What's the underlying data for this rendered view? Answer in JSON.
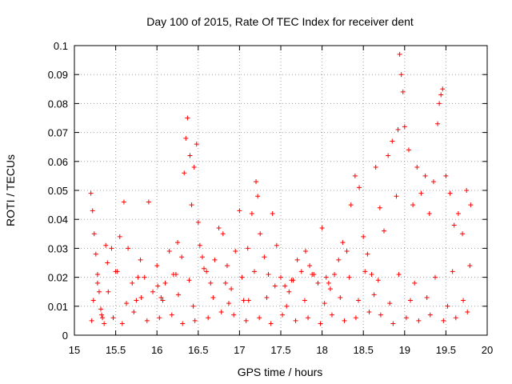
{
  "chart_data": {
    "type": "scatter",
    "title": "Day 100 of 2015, Rate Of TEC Index for receiver dent",
    "xlabel": "GPS time / hours",
    "ylabel": "ROTI / TECUs",
    "xlim": [
      15,
      20
    ],
    "ylim": [
      0,
      0.1
    ],
    "xticks": [
      "15",
      "15.5",
      "16",
      "16.5",
      "17",
      "17.5",
      "18",
      "18.5",
      "19",
      "19.5",
      "20"
    ],
    "yticks": [
      "0",
      "0.01",
      "0.02",
      "0.03",
      "0.04",
      "0.05",
      "0.06",
      "0.07",
      "0.08",
      "0.09",
      "0.1"
    ],
    "grid": true,
    "legend": "none",
    "marker": "plus",
    "color": "#ff0000",
    "series": [
      {
        "x": [
          15.2,
          15.22,
          15.24,
          15.26,
          15.28,
          15.3,
          15.32,
          15.34,
          15.36,
          15.38,
          15.4,
          15.45,
          15.5,
          15.55,
          15.6,
          15.65,
          15.7,
          15.75,
          15.8,
          15.85,
          15.9,
          15.95,
          16.0,
          16.05,
          16.1,
          16.15,
          16.2,
          16.25,
          16.3,
          16.33,
          16.35,
          16.37,
          16.4,
          16.42,
          16.45,
          16.48,
          16.5,
          16.52,
          16.55,
          16.6,
          16.65,
          16.7,
          16.75,
          16.8,
          16.85,
          16.9,
          16.95,
          17.0,
          17.05,
          17.1,
          17.15,
          17.2,
          17.22,
          17.25,
          17.3,
          17.35,
          17.4,
          17.45,
          17.5,
          17.55,
          17.6,
          17.65,
          17.7,
          17.75,
          17.8,
          17.85,
          17.9,
          17.95,
          18.0,
          18.05,
          18.1,
          18.15,
          18.2,
          18.25,
          18.3,
          18.35,
          18.4,
          18.45,
          18.5,
          18.55,
          18.6,
          18.65,
          18.7,
          18.75,
          18.8,
          18.85,
          18.9,
          18.92,
          18.94,
          18.96,
          18.98,
          19.0,
          19.05,
          19.1,
          19.15,
          19.2,
          19.25,
          19.3,
          19.35,
          19.4,
          19.42,
          19.44,
          19.46,
          19.5,
          19.55,
          19.6,
          19.65,
          19.7,
          19.75,
          19.8,
          15.21,
          15.33,
          15.47,
          15.58,
          15.72,
          15.88,
          16.03,
          16.18,
          16.31,
          16.46,
          16.62,
          16.78,
          16.93,
          17.08,
          17.24,
          17.38,
          17.52,
          17.68,
          17.83,
          17.98,
          18.12,
          18.27,
          18.41,
          18.57,
          18.71,
          18.86,
          19.02,
          19.17,
          19.31,
          19.47,
          19.62,
          19.76,
          15.23,
          15.41,
          15.63,
          15.81,
          16.07,
          16.26,
          16.44,
          16.68,
          16.87,
          17.11,
          17.33,
          17.57,
          17.79,
          18.03,
          18.22,
          18.44,
          18.63,
          18.82,
          19.07,
          19.27,
          19.52,
          19.71,
          15.28,
          15.52,
          15.77,
          16.01,
          16.23,
          16.39,
          16.57,
          16.83,
          17.03,
          17.18,
          17.43,
          17.63,
          17.88,
          18.08,
          18.33,
          18.52,
          18.68,
          18.93,
          19.12,
          19.37,
          19.58,
          19.79
        ],
        "y": [
          0.049,
          0.043,
          0.035,
          0.028,
          0.021,
          0.015,
          0.009,
          0.006,
          0.004,
          0.031,
          0.025,
          0.03,
          0.022,
          0.034,
          0.046,
          0.03,
          0.018,
          0.012,
          0.026,
          0.02,
          0.046,
          0.015,
          0.024,
          0.013,
          0.018,
          0.029,
          0.021,
          0.032,
          0.027,
          0.056,
          0.068,
          0.075,
          0.062,
          0.045,
          0.058,
          0.066,
          0.039,
          0.031,
          0.027,
          0.022,
          0.018,
          0.026,
          0.037,
          0.035,
          0.024,
          0.016,
          0.029,
          0.043,
          0.012,
          0.03,
          0.042,
          0.053,
          0.048,
          0.035,
          0.027,
          0.021,
          0.042,
          0.031,
          0.02,
          0.017,
          0.015,
          0.019,
          0.026,
          0.022,
          0.029,
          0.024,
          0.021,
          0.018,
          0.037,
          0.02,
          0.016,
          0.021,
          0.026,
          0.032,
          0.029,
          0.045,
          0.055,
          0.051,
          0.034,
          0.028,
          0.021,
          0.058,
          0.044,
          0.036,
          0.062,
          0.067,
          0.048,
          0.071,
          0.097,
          0.09,
          0.084,
          0.072,
          0.064,
          0.045,
          0.058,
          0.049,
          0.055,
          0.042,
          0.053,
          0.073,
          0.08,
          0.083,
          0.085,
          0.055,
          0.049,
          0.038,
          0.042,
          0.035,
          0.05,
          0.045,
          0.005,
          0.007,
          0.006,
          0.004,
          0.008,
          0.005,
          0.006,
          0.007,
          0.004,
          0.005,
          0.006,
          0.008,
          0.007,
          0.005,
          0.006,
          0.004,
          0.007,
          0.005,
          0.006,
          0.004,
          0.007,
          0.005,
          0.006,
          0.008,
          0.007,
          0.004,
          0.006,
          0.005,
          0.007,
          0.005,
          0.006,
          0.008,
          0.012,
          0.015,
          0.011,
          0.013,
          0.012,
          0.014,
          0.01,
          0.013,
          0.011,
          0.012,
          0.013,
          0.01,
          0.012,
          0.011,
          0.013,
          0.012,
          0.014,
          0.011,
          0.012,
          0.013,
          0.01,
          0.012,
          0.018,
          0.022,
          0.02,
          0.017,
          0.021,
          0.019,
          0.023,
          0.018,
          0.02,
          0.022,
          0.017,
          0.019,
          0.021,
          0.018,
          0.02,
          0.022,
          0.019,
          0.021,
          0.018,
          0.02,
          0.022,
          0.024
        ]
      }
    ]
  }
}
